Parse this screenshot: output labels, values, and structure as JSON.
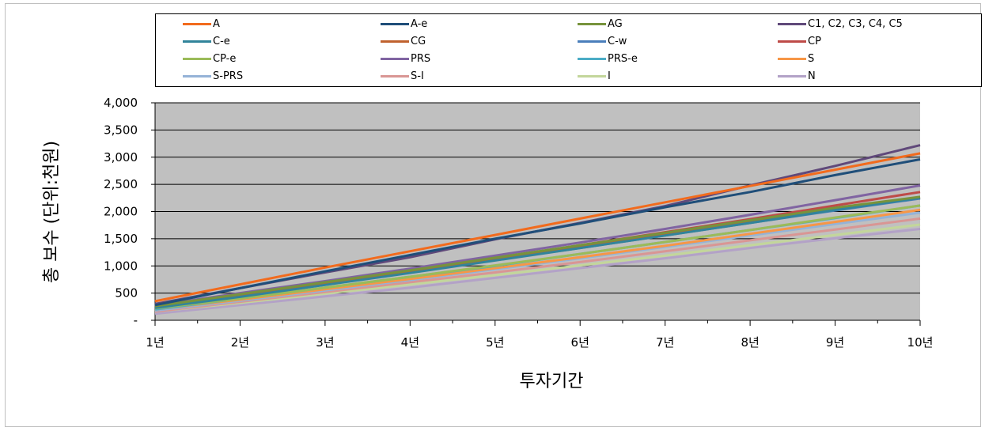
{
  "chart_data": {
    "type": "line",
    "xlabel": "투자기간",
    "ylabel": "총 보수  (단위:천원)",
    "categories": [
      "1년",
      "2년",
      "3년",
      "4년",
      "5년",
      "6년",
      "7년",
      "8년",
      "9년",
      "10년"
    ],
    "ylim": [
      0,
      4000
    ],
    "y_ticks": [
      "-",
      "500",
      "1,000",
      "1,500",
      "2,000",
      "2,500",
      "3,000",
      "3,500",
      "4,000"
    ],
    "y_tick_values": [
      0,
      500,
      1000,
      1500,
      2000,
      2500,
      3000,
      3500,
      4000
    ],
    "grid": "horizontal",
    "legend_position": "top",
    "series": [
      {
        "name": "A",
        "color": "#F26B1D",
        "values": [
          350,
          660,
          970,
          1270,
          1570,
          1870,
          2170,
          2470,
          2770,
          3070
        ]
      },
      {
        "name": "A-e",
        "color": "#1F4E79",
        "values": [
          280,
          590,
          900,
          1200,
          1500,
          1780,
          2080,
          2360,
          2670,
          2960
        ]
      },
      {
        "name": "AG",
        "color": "#77933C",
        "values": [
          260,
          480,
          700,
          920,
          1150,
          1380,
          1610,
          1840,
          2070,
          2270
        ]
      },
      {
        "name": "C1, C2, C3, C4, C5",
        "color": "#60497A",
        "values": [
          300,
          590,
          880,
          1160,
          1490,
          1790,
          2100,
          2480,
          2840,
          3220
        ]
      },
      {
        "name": "C-e",
        "color": "#31849B",
        "values": [
          230,
          430,
          650,
          870,
          1100,
          1330,
          1560,
          1790,
          2030,
          2250
        ]
      },
      {
        "name": "CG",
        "color": "#C0622E",
        "values": [
          250,
          460,
          670,
          890,
          1120,
          1350,
          1580,
          1810,
          2040,
          2260
        ]
      },
      {
        "name": "C-w",
        "color": "#4A7EBB",
        "values": [
          240,
          450,
          660,
          880,
          1110,
          1330,
          1560,
          1790,
          2020,
          2240
        ]
      },
      {
        "name": "CP",
        "color": "#BE4B48",
        "values": [
          250,
          470,
          690,
          910,
          1140,
          1380,
          1620,
          1860,
          2110,
          2360
        ]
      },
      {
        "name": "CP-e",
        "color": "#9BBB59",
        "values": [
          220,
          400,
          600,
          800,
          1010,
          1220,
          1440,
          1660,
          1890,
          2110
        ]
      },
      {
        "name": "PRS",
        "color": "#8064A2",
        "values": [
          270,
          500,
          720,
          950,
          1190,
          1430,
          1680,
          1940,
          2210,
          2480
        ]
      },
      {
        "name": "PRS-e",
        "color": "#4BACC6",
        "values": [
          200,
          400,
          600,
          800,
          1000,
          1220,
          1440,
          1660,
          1880,
          2110
        ]
      },
      {
        "name": "S",
        "color": "#F79646",
        "values": [
          200,
          380,
          570,
          760,
          960,
          1160,
          1370,
          1590,
          1810,
          2030
        ]
      },
      {
        "name": "S-PRS",
        "color": "#95B3D7",
        "values": [
          180,
          360,
          550,
          740,
          940,
          1140,
          1350,
          1560,
          1770,
          1980
        ]
      },
      {
        "name": "S-I",
        "color": "#D99694",
        "values": [
          160,
          340,
          520,
          700,
          880,
          1070,
          1270,
          1470,
          1670,
          1870
        ]
      },
      {
        "name": "I",
        "color": "#C3D69B",
        "values": [
          160,
          320,
          490,
          660,
          830,
          1010,
          1190,
          1380,
          1570,
          1760
        ]
      },
      {
        "name": "N",
        "color": "#B3A2C7",
        "values": [
          120,
          280,
          440,
          600,
          780,
          960,
          1140,
          1330,
          1510,
          1680
        ]
      }
    ]
  }
}
